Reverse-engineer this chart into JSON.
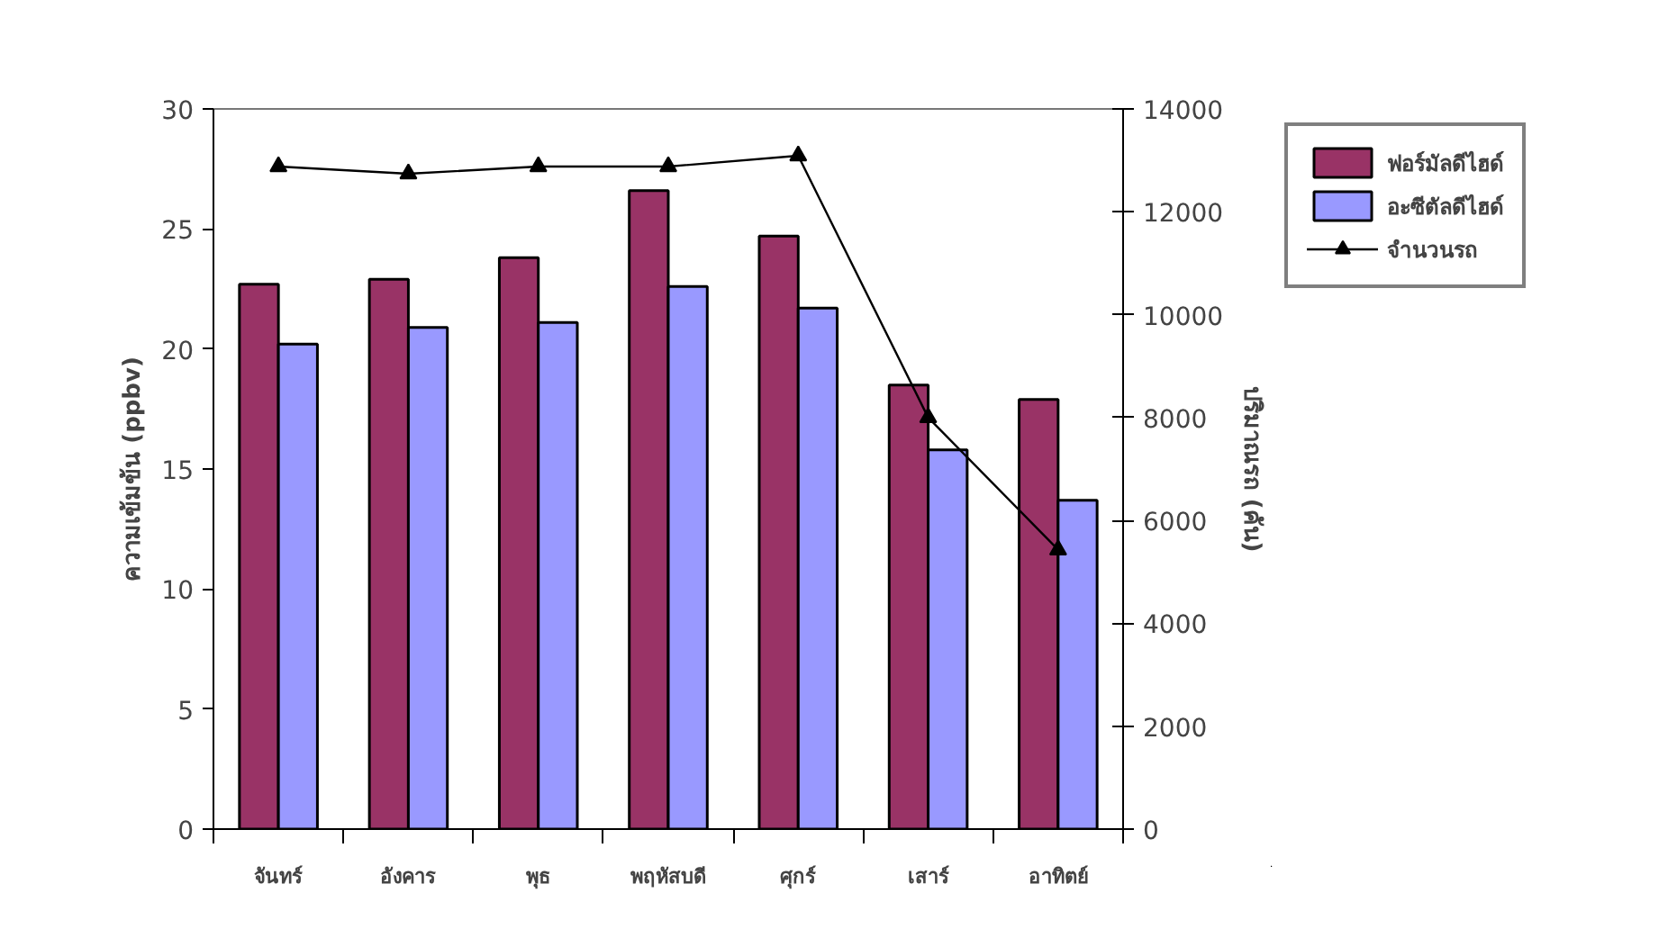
{
  "chart_data": {
    "type": "bar",
    "categories": [
      "จันทร์",
      "อังคาร",
      "พุธ",
      "พฤหัสบดี",
      "ศุกร์",
      "เสาร์",
      "อาทิตย์"
    ],
    "ylabel": "ความเข้มข้น (ppbv)",
    "y2label": "ปริมาณรถ (คัน)",
    "ylim": [
      0,
      30
    ],
    "yticks": [
      0,
      5,
      10,
      15,
      20,
      25,
      30
    ],
    "y2lim": [
      0,
      14000
    ],
    "y2ticks": [
      0,
      2000,
      4000,
      6000,
      8000,
      10000,
      12000,
      14000
    ],
    "grid": false,
    "legend": "top right",
    "series": [
      {
        "name": "ฟอร์มัลดีไฮด์",
        "color": "#993366",
        "values": [
          22.7,
          22.9,
          23.8,
          26.6,
          24.7,
          18.5,
          17.9
        ]
      },
      {
        "name": "อะซีตัลดีไฮด์",
        "color": "#9999ff",
        "values": [
          20.2,
          20.9,
          21.1,
          22.6,
          21.7,
          15.8,
          13.7
        ]
      },
      {
        "name": "จำนวนรถ",
        "type": "line",
        "axis": "y2",
        "color": "#000000",
        "marker": "triangle",
        "values": [
          12880,
          12740,
          12880,
          12880,
          13090,
          8000,
          5430
        ]
      }
    ]
  }
}
